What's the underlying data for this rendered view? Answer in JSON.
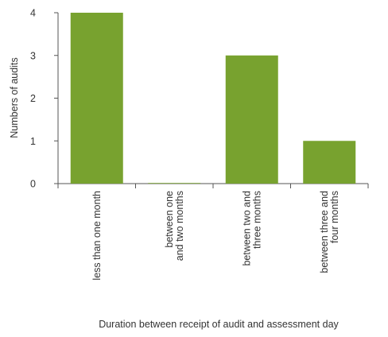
{
  "chart_data": {
    "type": "bar",
    "title": "",
    "xlabel": "Duration between receipt of audit and assessment day",
    "ylabel": "Numbers of audits",
    "ylim": [
      0,
      4
    ],
    "yticks": [
      0,
      1,
      2,
      3,
      4
    ],
    "grid": false,
    "bar_color": "#78a22f",
    "categories": [
      [
        "less than one month"
      ],
      [
        "between one",
        "and two months"
      ],
      [
        "between two and",
        "three months"
      ],
      [
        "between three and",
        "four months"
      ]
    ],
    "values": [
      4,
      0,
      3,
      1
    ]
  }
}
